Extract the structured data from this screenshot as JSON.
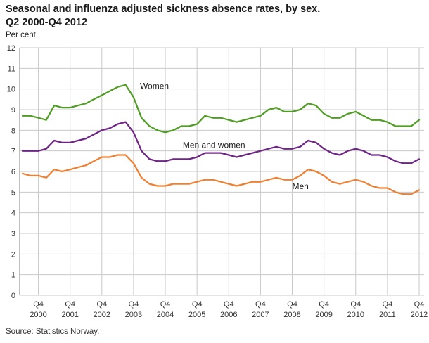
{
  "chart_data": {
    "type": "line",
    "title_line1": "Seasonal and influenza adjusted sickness absence rates, by sex.",
    "title_line2": "Q2 2000-Q4 2012",
    "ylabel": "Per cent",
    "ylim": [
      0,
      12
    ],
    "y_step": 1,
    "grid": true,
    "x_start_quarter": "2000 Q2",
    "x_end_quarter": "2012 Q4",
    "x_tick_label": "Q4",
    "x_tick_years": [
      "2000",
      "2001",
      "2002",
      "2003",
      "2004",
      "2005",
      "2006",
      "2007",
      "2008",
      "2009",
      "2010",
      "2011",
      "2012"
    ],
    "series": [
      {
        "name": "Women",
        "color": "#4f9e23",
        "values": [
          8.7,
          8.7,
          8.6,
          8.5,
          9.2,
          9.1,
          9.1,
          9.2,
          9.3,
          9.5,
          9.7,
          9.9,
          10.1,
          10.2,
          9.6,
          8.6,
          8.2,
          8.0,
          7.9,
          8.0,
          8.2,
          8.2,
          8.3,
          8.7,
          8.6,
          8.6,
          8.5,
          8.4,
          8.5,
          8.6,
          8.7,
          9.0,
          9.1,
          8.9,
          8.9,
          9.0,
          9.3,
          9.2,
          8.8,
          8.6,
          8.6,
          8.8,
          8.9,
          8.7,
          8.5,
          8.5,
          8.4,
          8.2,
          8.2,
          8.2,
          8.5
        ]
      },
      {
        "name": "Men and women",
        "color": "#6e2585",
        "values": [
          7.0,
          7.0,
          7.0,
          7.1,
          7.5,
          7.4,
          7.4,
          7.5,
          7.6,
          7.8,
          8.0,
          8.1,
          8.3,
          8.4,
          7.9,
          7.0,
          6.6,
          6.5,
          6.5,
          6.6,
          6.6,
          6.6,
          6.7,
          6.9,
          6.9,
          6.9,
          6.8,
          6.7,
          6.8,
          6.9,
          7.0,
          7.1,
          7.2,
          7.1,
          7.1,
          7.2,
          7.5,
          7.4,
          7.1,
          6.9,
          6.8,
          7.0,
          7.1,
          7.0,
          6.8,
          6.8,
          6.7,
          6.5,
          6.4,
          6.4,
          6.6
        ]
      },
      {
        "name": "Men",
        "color": "#ef8031",
        "values": [
          5.9,
          5.8,
          5.8,
          5.7,
          6.1,
          6.0,
          6.1,
          6.2,
          6.3,
          6.5,
          6.7,
          6.7,
          6.8,
          6.8,
          6.4,
          5.7,
          5.4,
          5.3,
          5.3,
          5.4,
          5.4,
          5.4,
          5.5,
          5.6,
          5.6,
          5.5,
          5.4,
          5.3,
          5.4,
          5.5,
          5.5,
          5.6,
          5.7,
          5.6,
          5.6,
          5.8,
          6.1,
          6.0,
          5.8,
          5.5,
          5.4,
          5.5,
          5.6,
          5.5,
          5.3,
          5.2,
          5.2,
          5.0,
          4.9,
          4.9,
          5.1
        ]
      }
    ],
    "annotations": [
      {
        "text": "Women",
        "x_index": 14.8,
        "y_value": 10.0
      },
      {
        "text": "Men and women",
        "x_index": 20.2,
        "y_value": 7.15
      },
      {
        "text": "Men",
        "x_index": 34.0,
        "y_value": 5.15
      }
    ],
    "source": "Source: Statistics Norway.",
    "colors": {
      "grid": "#c9c9c9",
      "axis": "#808080",
      "tick_text": "#333333",
      "annotation_text": "#1a1a1a"
    }
  }
}
